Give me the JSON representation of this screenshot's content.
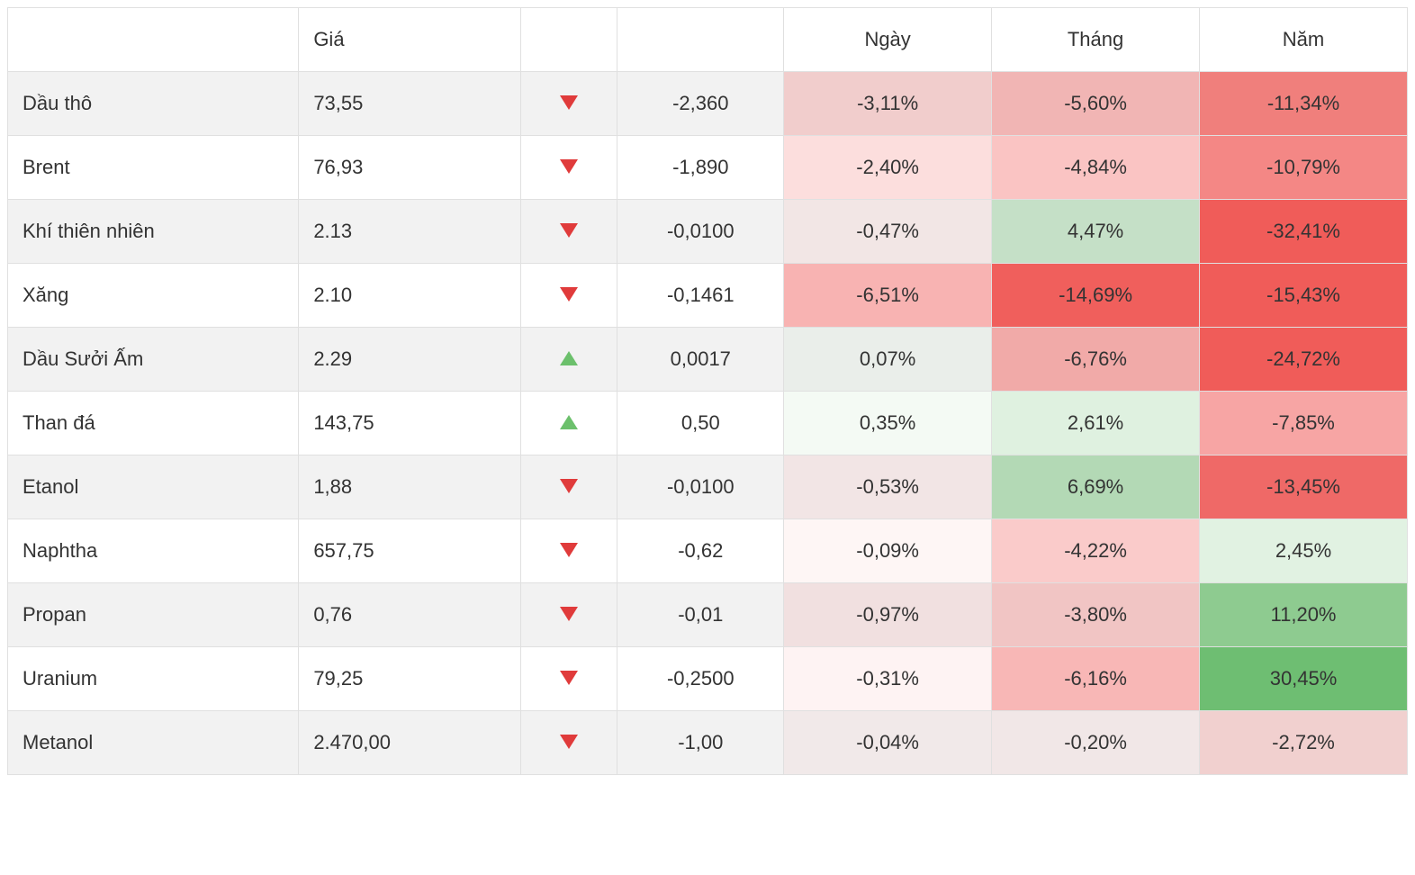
{
  "heat": {
    "red": {
      "max_abs": 15,
      "base": "239,83,80"
    },
    "green": {
      "max_abs": 15,
      "base": "102,187,106"
    },
    "min_alpha": 0.05,
    "max_alpha": 0.95
  },
  "columns": {
    "name": "",
    "price": "Giá",
    "arrow": "",
    "change": "",
    "day": "Ngày",
    "month": "Tháng",
    "year": "Năm"
  },
  "rows": [
    {
      "name": "Dầu thô",
      "price": "73,55",
      "dir": "down",
      "change": "-2,360",
      "day": "-3,11%",
      "day_v": -3.11,
      "month": "-5,60%",
      "month_v": -5.6,
      "year": "-11,34%",
      "year_v": -11.34
    },
    {
      "name": "Brent",
      "price": "76,93",
      "dir": "down",
      "change": "-1,890",
      "day": "-2,40%",
      "day_v": -2.4,
      "month": "-4,84%",
      "month_v": -4.84,
      "year": "-10,79%",
      "year_v": -10.79
    },
    {
      "name": "Khí thiên nhiên",
      "price": "2.13",
      "dir": "down",
      "change": "-0,0100",
      "day": "-0,47%",
      "day_v": -0.47,
      "month": "4,47%",
      "month_v": 4.47,
      "year": "-32,41%",
      "year_v": -32.41
    },
    {
      "name": "Xăng",
      "price": "2.10",
      "dir": "down",
      "change": "-0,1461",
      "day": "-6,51%",
      "day_v": -6.51,
      "month": "-14,69%",
      "month_v": -14.69,
      "year": "-15,43%",
      "year_v": -15.43
    },
    {
      "name": "Dầu Sưởi Ấm",
      "price": "2.29",
      "dir": "up",
      "change": "0,0017",
      "day": "0,07%",
      "day_v": 0.07,
      "month": "-6,76%",
      "month_v": -6.76,
      "year": "-24,72%",
      "year_v": -24.72
    },
    {
      "name": "Than đá",
      "price": "143,75",
      "dir": "up",
      "change": "0,50",
      "day": "0,35%",
      "day_v": 0.35,
      "month": "2,61%",
      "month_v": 2.61,
      "year": "-7,85%",
      "year_v": -7.85
    },
    {
      "name": "Etanol",
      "price": "1,88",
      "dir": "down",
      "change": "-0,0100",
      "day": "-0,53%",
      "day_v": -0.53,
      "month": "6,69%",
      "month_v": 6.69,
      "year": "-13,45%",
      "year_v": -13.45
    },
    {
      "name": "Naphtha",
      "price": "657,75",
      "dir": "down",
      "change": "-0,62",
      "day": "-0,09%",
      "day_v": -0.09,
      "month": "-4,22%",
      "month_v": -4.22,
      "year": "2,45%",
      "year_v": 2.45
    },
    {
      "name": "Propan",
      "price": "0,76",
      "dir": "down",
      "change": "-0,01",
      "day": "-0,97%",
      "day_v": -0.97,
      "month": "-3,80%",
      "month_v": -3.8,
      "year": "11,20%",
      "year_v": 11.2
    },
    {
      "name": "Uranium",
      "price": "79,25",
      "dir": "down",
      "change": "-0,2500",
      "day": "-0,31%",
      "day_v": -0.31,
      "month": "-6,16%",
      "month_v": -6.16,
      "year": "30,45%",
      "year_v": 30.45
    },
    {
      "name": "Metanol",
      "price": "2.470,00",
      "dir": "down",
      "change": "-1,00",
      "day": "-0,04%",
      "day_v": -0.04,
      "month": "-0,20%",
      "month_v": -0.2,
      "year": "-2,72%",
      "year_v": -2.72
    }
  ]
}
